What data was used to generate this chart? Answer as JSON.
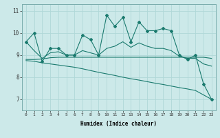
{
  "xlabel": "Humidex (Indice chaleur)",
  "ylabel": "",
  "background_color": "#cce9e9",
  "grid_color": "#b0d8d8",
  "line_color": "#1a7a6e",
  "xlim": [
    -0.5,
    23.5
  ],
  "ylim": [
    6.5,
    11.3
  ],
  "yticks": [
    7,
    8,
    9,
    10,
    11
  ],
  "xticks": [
    0,
    1,
    2,
    3,
    4,
    5,
    6,
    7,
    8,
    9,
    10,
    11,
    12,
    13,
    14,
    15,
    16,
    17,
    18,
    19,
    20,
    21,
    22,
    23
  ],
  "series1": [
    9.6,
    10.0,
    8.7,
    9.3,
    9.3,
    9.0,
    9.0,
    9.9,
    9.7,
    9.0,
    10.8,
    10.3,
    10.7,
    9.6,
    10.5,
    10.1,
    10.1,
    10.2,
    10.1,
    9.0,
    8.8,
    9.0,
    7.7,
    7.0
  ],
  "series2": [
    9.6,
    9.2,
    8.85,
    9.1,
    9.15,
    9.0,
    9.0,
    9.2,
    9.1,
    9.0,
    9.3,
    9.4,
    9.6,
    9.35,
    9.55,
    9.4,
    9.3,
    9.3,
    9.2,
    8.95,
    8.85,
    8.85,
    8.6,
    8.5
  ],
  "series3": [
    8.8,
    8.8,
    8.82,
    8.88,
    8.9,
    8.9,
    8.9,
    8.9,
    8.9,
    8.9,
    8.9,
    8.9,
    8.9,
    8.9,
    8.9,
    8.9,
    8.9,
    8.9,
    8.9,
    8.9,
    8.9,
    8.9,
    8.9,
    8.85
  ],
  "series4": [
    8.75,
    8.72,
    8.65,
    8.6,
    8.55,
    8.5,
    8.45,
    8.38,
    8.3,
    8.22,
    8.15,
    8.08,
    8.0,
    7.93,
    7.87,
    7.8,
    7.73,
    7.67,
    7.6,
    7.53,
    7.47,
    7.4,
    7.2,
    7.0
  ]
}
